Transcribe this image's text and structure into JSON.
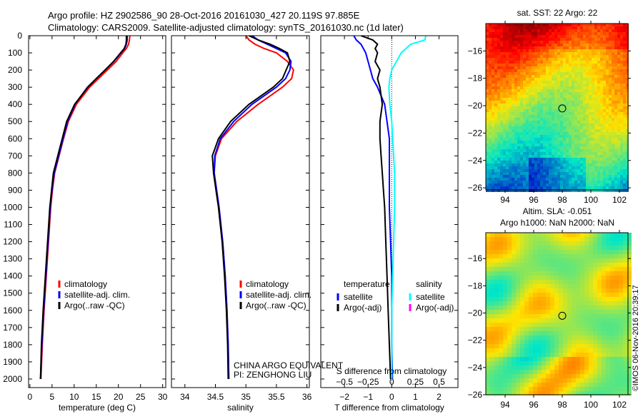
{
  "title": {
    "line1": "Argo profile: HZ 2902586_90 28-Oct-2016 20161030_427 20.119S 97.885E",
    "line2": "Climatology: CARS2009. Satellite-adjusted climatology: synTS_20161030.nc (1d later)"
  },
  "credit": "©IMOS 06-Nov-2016 20:39:17",
  "owner": {
    "line1": "CHINA ARGO EQUIVALENT",
    "line2": "PI: ZENGHONG LIU"
  },
  "colors": {
    "clim": "#ff0000",
    "sat": "#0000ff",
    "argo": "#000000",
    "sal_sat": "#00ffff",
    "sal_argo": "#ff00ff"
  },
  "chart_data": [
    {
      "type": "line",
      "name": "temperature",
      "xlabel": "temperature (deg C)",
      "xlim": [
        -0.3,
        30.7
      ],
      "xticks": [
        0,
        5,
        10,
        15,
        20,
        25,
        30
      ],
      "ylim": [
        0,
        2050
      ],
      "yticks": [
        0,
        100,
        200,
        300,
        400,
        500,
        600,
        700,
        800,
        900,
        1000,
        1100,
        1200,
        1300,
        1400,
        1500,
        1600,
        1700,
        1800,
        1900,
        2000
      ],
      "depth": [
        0,
        25,
        50,
        75,
        100,
        150,
        200,
        250,
        300,
        400,
        500,
        600,
        700,
        800,
        900,
        1000,
        1200,
        1400,
        1600,
        1800,
        2000
      ],
      "legend": [
        "climatology",
        "satellite-adj. clim.",
        "Argo(..raw -QC)"
      ],
      "series": [
        {
          "name": "climatology",
          "color": "clim",
          "values": [
            22.6,
            22.5,
            22.3,
            21.8,
            21.0,
            19.5,
            17.5,
            15.5,
            13.5,
            10.5,
            8.7,
            7.6,
            6.6,
            5.6,
            5.1,
            4.7,
            4.2,
            3.7,
            3.2,
            2.8,
            2.5
          ]
        },
        {
          "name": "satellite-adj. clim.",
          "color": "sat",
          "values": [
            22.0,
            22.0,
            21.8,
            21.4,
            20.6,
            19.0,
            17.0,
            15.0,
            13.0,
            10.2,
            8.5,
            7.5,
            6.5,
            5.5,
            5.0,
            4.6,
            4.1,
            3.6,
            3.1,
            2.7,
            2.4
          ]
        },
        {
          "name": "Argo(..raw -QC)",
          "color": "argo",
          "values": [
            21.8,
            21.8,
            21.7,
            21.3,
            20.5,
            18.9,
            17.0,
            15.0,
            13.1,
            10.1,
            8.3,
            7.3,
            6.3,
            5.3,
            4.9,
            4.5,
            4.0,
            3.5,
            3.0,
            2.6,
            2.4
          ]
        }
      ]
    },
    {
      "type": "line",
      "name": "salinity",
      "xlabel": "salinity",
      "xlim": [
        33.78,
        36.04
      ],
      "xticks": [
        34,
        34.5,
        35,
        35.5,
        36
      ],
      "ylim": [
        0,
        2050
      ],
      "depth": [
        0,
        25,
        50,
        75,
        100,
        150,
        200,
        250,
        300,
        400,
        500,
        600,
        700,
        800,
        900,
        1000,
        1200,
        1400,
        1600,
        1800,
        2000
      ],
      "legend": [
        "climatology",
        "satellite-adj. clim.",
        "Argo(..raw -QC)"
      ],
      "series": [
        {
          "name": "climatology",
          "color": "clim",
          "values": [
            35.0,
            35.05,
            35.15,
            35.3,
            35.5,
            35.68,
            35.78,
            35.75,
            35.6,
            35.2,
            34.85,
            34.6,
            34.5,
            34.48,
            34.52,
            34.56,
            34.62,
            34.66,
            34.69,
            34.71,
            34.72
          ]
        },
        {
          "name": "satellite-adj. clim.",
          "color": "sat",
          "values": [
            35.1,
            35.2,
            35.35,
            35.5,
            35.65,
            35.74,
            35.72,
            35.65,
            35.5,
            35.1,
            34.8,
            34.58,
            34.49,
            34.48,
            34.52,
            34.56,
            34.62,
            34.66,
            34.69,
            34.71,
            34.72
          ]
        },
        {
          "name": "Argo(..raw -QC)",
          "color": "argo",
          "values": [
            35.05,
            35.2,
            35.4,
            35.55,
            35.68,
            35.72,
            35.66,
            35.6,
            35.45,
            35.05,
            34.75,
            34.55,
            34.45,
            34.47,
            34.51,
            34.55,
            34.61,
            34.65,
            34.68,
            34.7,
            34.71
          ]
        }
      ]
    },
    {
      "type": "line",
      "name": "differences",
      "xlabel": "T difference from climatology",
      "xlim": [
        -3,
        2.8
      ],
      "xticks": [
        -2,
        -1,
        0,
        1,
        2
      ],
      "x2label": "S difference from climatology",
      "x2ticks": [
        -0.5,
        -0.25,
        0,
        0.25,
        0.5
      ],
      "x2_per_x": 4,
      "ylim": [
        0,
        2050
      ],
      "depth": [
        0,
        25,
        50,
        75,
        100,
        150,
        200,
        250,
        300,
        400,
        500,
        600,
        700,
        800,
        900,
        1000,
        1200,
        1400,
        1600,
        1800,
        2000
      ],
      "legend": {
        "t_head": "temperature",
        "s_head": "salinity",
        "items": [
          "satellite",
          "Argo(-adj)",
          "satellite",
          "Argo(-adj)"
        ]
      },
      "series": [
        {
          "name": "T satellite",
          "color": "sat",
          "scale": "T",
          "values": [
            -1.6,
            -1.5,
            -1.3,
            -1.2,
            -1.1,
            -1.0,
            -0.9,
            -0.8,
            -0.6,
            -0.3,
            -0.2,
            -0.1,
            -0.1,
            -0.1,
            -0.1,
            -0.1,
            -0.05,
            0,
            0,
            0,
            0.03
          ]
        },
        {
          "name": "T Argo(-adj)",
          "color": "argo",
          "scale": "T",
          "values": [
            -1.3,
            -0.8,
            -0.6,
            -0.7,
            -0.6,
            -0.7,
            -0.5,
            -0.6,
            -0.5,
            -0.4,
            -0.5,
            -0.5,
            -0.45,
            -0.4,
            -0.35,
            -0.3,
            -0.25,
            -0.2,
            -0.15,
            -0.1,
            -0.05
          ]
        },
        {
          "name": "S satellite",
          "color": "sal_sat",
          "scale": "S",
          "values": [
            0.36,
            0.35,
            0.2,
            0.15,
            0.1,
            0.05,
            0.0,
            -0.02,
            -0.03,
            -0.02,
            0.0,
            0.01,
            0.02,
            0.03,
            0.03,
            0.03,
            0.02,
            0.01,
            0,
            0,
            0
          ]
        }
      ]
    },
    {
      "type": "heatmap",
      "name": "sst-map",
      "title": "sat. SST: 22 Argo: 22",
      "xlim": [
        92.65,
        102.6
      ],
      "ylim": [
        -26.15,
        -14.0
      ],
      "xticks": [
        94,
        96,
        98,
        100,
        102
      ],
      "yticks": [
        -16,
        -18,
        -20,
        -22,
        -24,
        -26
      ],
      "marker": [
        98,
        -20.2
      ]
    },
    {
      "type": "heatmap",
      "name": "sla-map",
      "title": "Altim. SLA: -0.051",
      "subtitle": "Argo h1000: NaN h2000: NaN",
      "xlim": [
        92.65,
        102.6
      ],
      "ylim": [
        -26.0,
        -14.1
      ],
      "xticks": [
        94,
        96,
        98,
        100,
        102
      ],
      "yticks": [
        -16,
        -18,
        -20,
        -22,
        -24,
        -26
      ],
      "marker": [
        98,
        -20.2
      ]
    }
  ]
}
